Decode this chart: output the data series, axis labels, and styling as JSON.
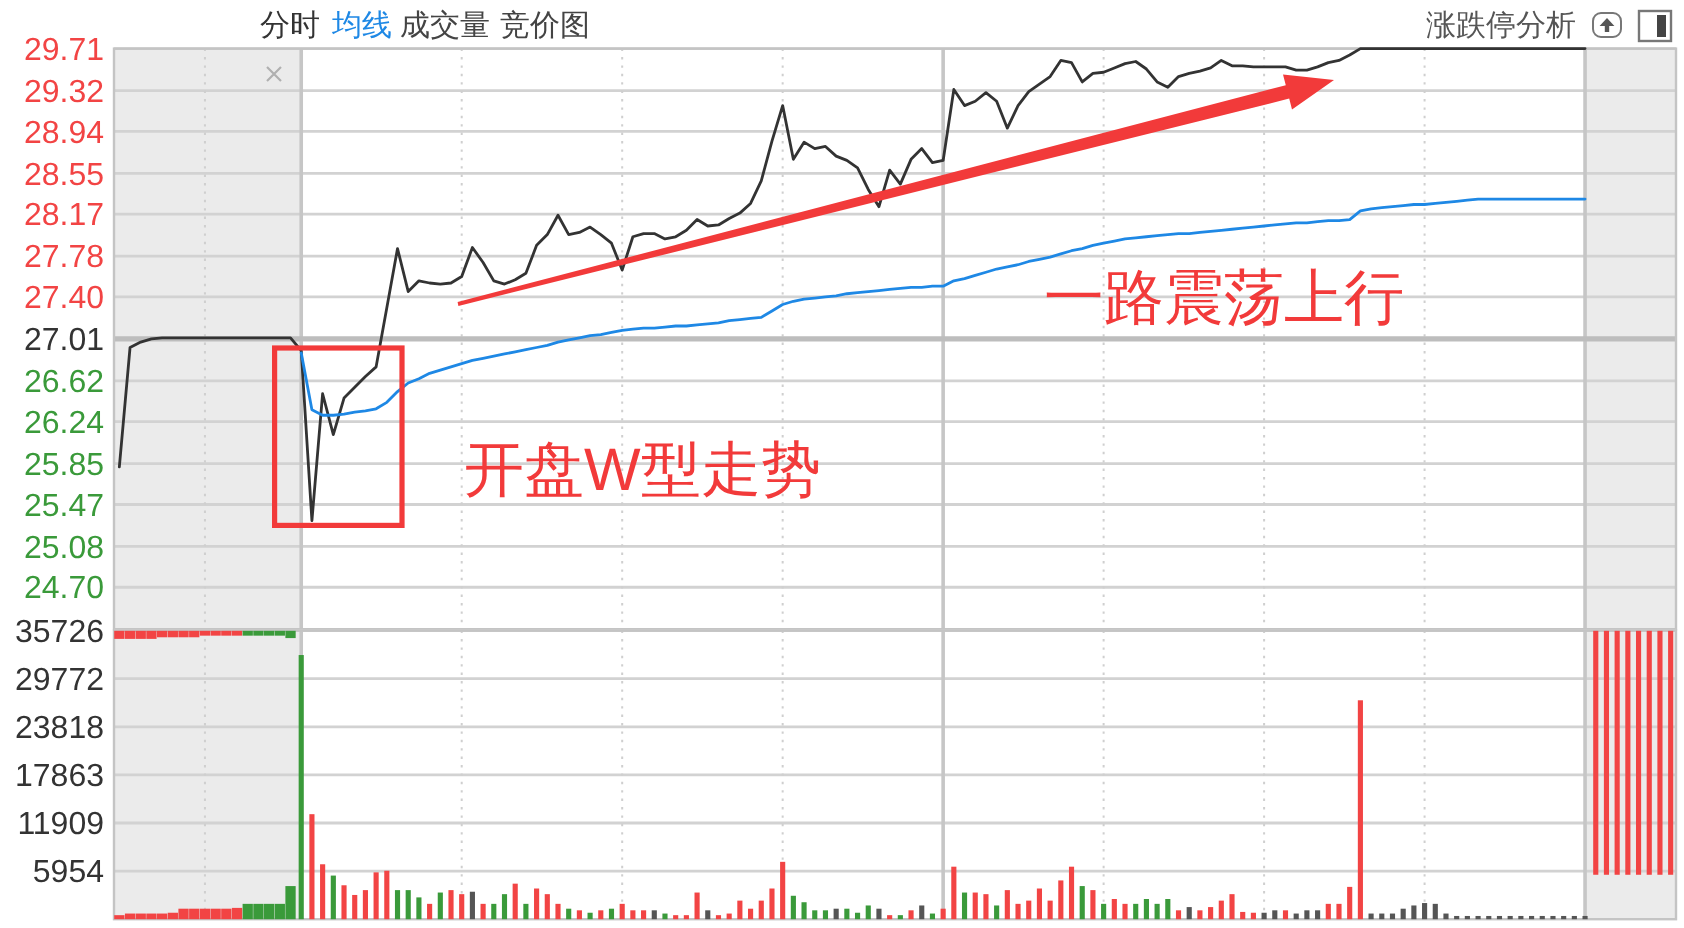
{
  "chart_data": [
    {
      "type": "line",
      "categories": [
        null,
        null,
        null,
        null,
        null,
        null,
        null,
        null,
        null,
        null,
        null,
        null,
        null,
        null,
        null,
        null,
        null,
        null,
        null,
        null,
        null,
        null,
        null,
        null,
        null,
        null,
        null,
        null,
        null,
        null,
        null,
        null,
        null,
        null,
        null,
        null,
        null,
        null,
        null,
        null,
        null,
        null,
        null,
        null,
        null,
        null,
        null,
        null,
        null,
        null,
        null,
        null,
        null,
        null,
        null,
        null,
        null,
        null,
        null,
        null,
        null,
        null,
        null,
        null,
        null,
        null,
        null,
        null,
        null,
        null,
        null,
        null,
        null,
        null,
        null,
        null,
        null,
        null,
        null,
        null,
        null,
        null,
        null,
        null,
        null,
        null,
        null,
        null,
        null,
        null,
        null,
        null,
        null,
        null,
        null,
        null,
        null,
        null,
        null,
        null,
        null,
        null,
        null,
        null,
        null,
        null,
        null,
        null,
        null,
        null,
        null,
        null,
        null,
        null,
        null,
        null,
        null,
        null,
        null,
        null,
        null,
        null,
        null,
        null,
        null,
        null,
        null,
        null,
        null,
        null,
        null,
        null,
        null,
        null,
        null,
        null,
        null,
        null,
        null,
        null,
        null,
        null,
        null,
        null,
        null,
        null
      ],
      "series": [
        {
          "name": "分时",
          "color": "#333333",
          "values": [
            25.82,
            26.93,
            26.98,
            27.01,
            27.02,
            27.02,
            27.02,
            27.02,
            27.02,
            27.02,
            27.02,
            27.02,
            27.02,
            27.02,
            27.02,
            27.02,
            27.02,
            26.9,
            25.32,
            26.5,
            26.12,
            26.46,
            26.56,
            26.66,
            26.75,
            27.3,
            27.85,
            27.45,
            27.55,
            27.53,
            27.52,
            27.53,
            27.59,
            27.86,
            27.72,
            27.55,
            27.52,
            27.56,
            27.62,
            27.88,
            27.98,
            28.16,
            27.98,
            28.0,
            28.05,
            27.98,
            27.9,
            27.65,
            27.96,
            27.99,
            27.99,
            27.94,
            27.96,
            28.02,
            28.12,
            28.06,
            28.07,
            28.13,
            28.18,
            28.27,
            28.48,
            28.85,
            29.18,
            28.68,
            28.84,
            28.78,
            28.8,
            28.71,
            28.67,
            28.6,
            28.4,
            28.24,
            28.58,
            28.45,
            28.68,
            28.78,
            28.65,
            28.67,
            29.33,
            29.18,
            29.22,
            29.3,
            29.22,
            28.97,
            29.18,
            29.31,
            29.38,
            29.45,
            29.6,
            29.58,
            29.4,
            29.48,
            29.49,
            29.53,
            29.57,
            29.59,
            29.52,
            29.4,
            29.35,
            29.45,
            29.48,
            29.5,
            29.53,
            29.6,
            29.55,
            29.55,
            29.54,
            29.54,
            29.54,
            29.54,
            29.51,
            29.51,
            29.54,
            29.58,
            29.6,
            29.65,
            29.71,
            29.71,
            29.71,
            29.71,
            29.71,
            29.71,
            29.71,
            29.71,
            29.71,
            29.71,
            29.71,
            29.71,
            29.71,
            29.71,
            29.71,
            29.71,
            29.71,
            29.71,
            29.71,
            29.71,
            29.71,
            29.71,
            null,
            null,
            null,
            null,
            null,
            null,
            null,
            null
          ]
        },
        {
          "name": "均线",
          "color": "#1e88e5",
          "values": [
            null,
            null,
            null,
            null,
            null,
            null,
            null,
            null,
            null,
            null,
            null,
            null,
            null,
            null,
            null,
            null,
            null,
            26.88,
            26.35,
            26.3,
            26.3,
            26.31,
            26.33,
            26.34,
            26.36,
            26.42,
            26.52,
            26.6,
            26.64,
            26.69,
            26.72,
            26.75,
            26.78,
            26.81,
            26.83,
            26.85,
            26.87,
            26.89,
            26.91,
            26.93,
            26.95,
            26.98,
            27.0,
            27.02,
            27.04,
            27.05,
            27.07,
            27.09,
            27.1,
            27.11,
            27.11,
            27.12,
            27.13,
            27.13,
            27.14,
            27.15,
            27.16,
            27.18,
            27.19,
            27.2,
            27.21,
            27.27,
            27.33,
            27.36,
            27.38,
            27.39,
            27.4,
            27.41,
            27.43,
            27.44,
            27.45,
            27.46,
            27.47,
            27.48,
            27.49,
            27.49,
            27.5,
            27.5,
            27.55,
            27.57,
            27.6,
            27.63,
            27.66,
            27.68,
            27.7,
            27.73,
            27.75,
            27.77,
            27.8,
            27.83,
            27.85,
            27.88,
            27.9,
            27.92,
            27.94,
            27.95,
            27.96,
            27.97,
            27.98,
            27.99,
            27.99,
            28.0,
            28.01,
            28.02,
            28.03,
            28.04,
            28.05,
            28.06,
            28.07,
            28.08,
            28.09,
            28.09,
            28.1,
            28.11,
            28.11,
            28.12,
            28.2,
            28.22,
            28.23,
            28.24,
            28.25,
            28.26,
            28.26,
            28.27,
            28.28,
            28.29,
            28.3,
            28.31,
            28.31,
            28.31,
            28.31,
            28.31,
            28.31,
            28.31,
            28.31,
            28.31,
            28.31,
            28.31,
            null,
            null,
            null,
            null,
            null,
            null,
            null,
            null
          ]
        }
      ],
      "ylim": [
        24.31,
        29.71
      ],
      "yticks": [
        {
          "value": 24.7,
          "label": "24.70"
        },
        25.08,
        25.47,
        25.85,
        26.24,
        26.62,
        27.01,
        {
          "value": 27.4,
          "label": "27.40"
        },
        27.78,
        28.17,
        28.55,
        28.94,
        29.32,
        29.71
      ],
      "grid": true,
      "legend": "top left",
      "tick_labels": "y",
      "ref_lines": [
        {
          "axis": "y",
          "value": 27.01,
          "color": "#bdbdbd"
        }
      ],
      "annotations": [
        "成交量",
        "竞价图",
        "涨跌停分析",
        "开盘W型走势",
        "一路震荡上行"
      ]
    },
    {
      "type": "bar",
      "categories": [
        null,
        null,
        null,
        null,
        null,
        null,
        null,
        null,
        null,
        null,
        null,
        null,
        null,
        null,
        null,
        null,
        null,
        null,
        null,
        null,
        null,
        null,
        null,
        null,
        null,
        null,
        null,
        null,
        null,
        null,
        null,
        null,
        null,
        null,
        null,
        null,
        null,
        null,
        null,
        null,
        null,
        null,
        null,
        null,
        null,
        null,
        null,
        null,
        null,
        null,
        null,
        null,
        null,
        null,
        null,
        null,
        null,
        null,
        null,
        null,
        null,
        null,
        null,
        null,
        null,
        null,
        null,
        null,
        null,
        null,
        null,
        null,
        null,
        null,
        null,
        null,
        null,
        null,
        null,
        null,
        null,
        null,
        null,
        null,
        null,
        null,
        null,
        null,
        null,
        null,
        null,
        null,
        null,
        null,
        null,
        null,
        null,
        null,
        null,
        null,
        null,
        null,
        null,
        null,
        null,
        null,
        null,
        null,
        null,
        null,
        null,
        null,
        null,
        null,
        null,
        null,
        null,
        null,
        null,
        null,
        null,
        null,
        null,
        null,
        null,
        null,
        null,
        null,
        null,
        null,
        null,
        null,
        null,
        null,
        null,
        null,
        null,
        null,
        null,
        null,
        null,
        null,
        null,
        null,
        null,
        null
      ],
      "series": [
        {
          "values": [
            500,
            700,
            700,
            700,
            700,
            800,
            1300,
            1300,
            1300,
            1300,
            1300,
            1400,
            1900,
            1900,
            1900,
            1900,
            4100,
            32700,
            13000,
            6800,
            5400,
            4200,
            3000,
            3600,
            5800,
            6000,
            3600,
            3600,
            2700,
            1900,
            3300,
            3600,
            3100,
            3400,
            1900,
            1900,
            3100,
            4400,
            1900,
            3800,
            3100,
            1900,
            1300,
            1100,
            800,
            1100,
            1300,
            1900,
            1100,
            1100,
            1100,
            700,
            500,
            500,
            3300,
            1100,
            500,
            700,
            2300,
            1300,
            2300,
            3800,
            7100,
            2900,
            2100,
            1100,
            1100,
            1300,
            1300,
            800,
            1700,
            1300,
            500,
            500,
            1100,
            1700,
            700,
            1300,
            6500,
            3300,
            3300,
            3100,
            1700,
            3600,
            1900,
            2300,
            3800,
            2300,
            4800,
            6500,
            4100,
            3600,
            1900,
            2500,
            1900,
            1900,
            2500,
            1900,
            2500,
            1100,
            1500,
            1100,
            1500,
            2300,
            3100,
            900,
            800,
            800,
            1100,
            1100,
            700,
            1100,
            1100,
            1900,
            1900,
            4000,
            27100,
            700,
            700,
            700,
            1300,
            1700,
            2000,
            1900,
            700,
            400,
            400,
            400,
            400,
            400,
            400,
            400,
            400,
            400,
            400,
            400,
            400,
            400,
            null,
            null,
            null,
            null,
            null,
            null,
            null,
            null
          ],
          "colors": [
            "#f24444",
            "#f24444",
            "#f24444",
            "#f24444",
            "#f24444",
            "#f24444",
            "#f24444",
            "#f24444",
            "#f24444",
            "#f24444",
            "#f24444",
            "#f24444",
            "#3a9a3a",
            "#3a9a3a",
            "#3a9a3a",
            "#3a9a3a",
            "#3a9a3a",
            "#3a9a3a",
            "#f24444",
            "#f24444",
            "#3a9a3a",
            "#f24444",
            "#f24444",
            "#f24444",
            "#f24444",
            "#f24444",
            "#3a9a3a",
            "#3a9a3a",
            "#3a9a3a",
            "#f24444",
            "#3a9a3a",
            "#f24444",
            "#f24444",
            "#555555",
            "#f24444",
            "#3a9a3a",
            "#3a9a3a",
            "#f24444",
            "#3a9a3a",
            "#f24444",
            "#f24444",
            "#f24444",
            "#3a9a3a",
            "#f24444",
            "#3a9a3a",
            "#f24444",
            "#3a9a3a",
            "#f24444",
            "#f24444",
            "#f24444",
            "#555555",
            "#3a9a3a",
            "#f24444",
            "#f24444",
            "#f24444",
            "#555555",
            "#f24444",
            "#f24444",
            "#f24444",
            "#f24444",
            "#f24444",
            "#f24444",
            "#f24444",
            "#3a9a3a",
            "#3a9a3a",
            "#3a9a3a",
            "#3a9a3a",
            "#555555",
            "#3a9a3a",
            "#3a9a3a",
            "#3a9a3a",
            "#555555",
            "#f24444",
            "#3a9a3a",
            "#f24444",
            "#555555",
            "#3a9a3a",
            "#f24444",
            "#f24444",
            "#3a9a3a",
            "#f24444",
            "#f24444",
            "#3a9a3a",
            "#f24444",
            "#f24444",
            "#f24444",
            "#f24444",
            "#f24444",
            "#f24444",
            "#f24444",
            "#3a9a3a",
            "#f24444",
            "#3a9a3a",
            "#f24444",
            "#f24444",
            "#3a9a3a",
            "#3a9a3a",
            "#3a9a3a",
            "#3a9a3a",
            "#f24444",
            "#555555",
            "#f24444",
            "#f24444",
            "#f24444",
            "#f24444",
            "#f24444",
            "#f24444",
            "#555555",
            "#555555",
            "#f24444",
            "#555555",
            "#555555",
            "#555555",
            "#f24444",
            "#f24444",
            "#f24444",
            "#f24444",
            "#555555",
            "#555555",
            "#555555",
            "#555555",
            "#555555",
            "#555555",
            "#555555",
            "#555555",
            "#555555",
            "#555555",
            "#555555",
            "#555555",
            "#555555",
            "#555555",
            "#555555",
            "#555555",
            "#555555",
            "#555555",
            "#555555",
            "#555555",
            "#555555",
            null,
            null,
            null,
            null,
            null,
            null,
            null,
            null
          ]
        },
        {
          "values": [
            1000,
            1000,
            1000,
            1000,
            800,
            800,
            800,
            800,
            600,
            600,
            600,
            600,
            600,
            600,
            600,
            600,
            900,
            null,
            null,
            null,
            null,
            null,
            null,
            null,
            null,
            null,
            null,
            null,
            null,
            null,
            null,
            null,
            null,
            null,
            null,
            null,
            null,
            null,
            null,
            null,
            null,
            null,
            null,
            null,
            null,
            null,
            null,
            null,
            null,
            null,
            null,
            null,
            null,
            null,
            null,
            null,
            null,
            null,
            null,
            null,
            null,
            null,
            null,
            null,
            null,
            null,
            null,
            null,
            null,
            null,
            null,
            null,
            null,
            null,
            null,
            null,
            null,
            null,
            null,
            null,
            null,
            null,
            null,
            null,
            null,
            null,
            null,
            null,
            null,
            null,
            null,
            null,
            null,
            null,
            null,
            null,
            null,
            null,
            null,
            null,
            null,
            null,
            null,
            null,
            null,
            null,
            null,
            null,
            null,
            null,
            null,
            null,
            null,
            null,
            null,
            null,
            null,
            null,
            null,
            null,
            null,
            null,
            null,
            null,
            null,
            null,
            null,
            null,
            null,
            null,
            null,
            null,
            null,
            null,
            null,
            null,
            null,
            null,
            30200,
            30200,
            30200,
            30200,
            30200,
            30200,
            30200,
            30200
          ],
          "base": [
            34700,
            34700,
            34700,
            34700,
            34900,
            34900,
            34900,
            34900,
            35100,
            35100,
            35100,
            35100,
            35100,
            35100,
            35100,
            35100,
            34800,
            null,
            null,
            null,
            null,
            null,
            null,
            null,
            null,
            null,
            null,
            null,
            null,
            null,
            null,
            null,
            null,
            null,
            null,
            null,
            null,
            null,
            null,
            null,
            null,
            null,
            null,
            null,
            null,
            null,
            null,
            null,
            null,
            null,
            null,
            null,
            null,
            null,
            null,
            null,
            null,
            null,
            null,
            null,
            null,
            null,
            null,
            null,
            null,
            null,
            null,
            null,
            null,
            null,
            null,
            null,
            null,
            null,
            null,
            null,
            null,
            null,
            null,
            null,
            null,
            null,
            null,
            null,
            null,
            null,
            null,
            null,
            null,
            null,
            null,
            null,
            null,
            null,
            null,
            null,
            null,
            null,
            null,
            null,
            null,
            null,
            null,
            null,
            null,
            null,
            null,
            null,
            null,
            null,
            null,
            null,
            null,
            null,
            null,
            null,
            null,
            null,
            null,
            null,
            null,
            null,
            null,
            null,
            null,
            null,
            null,
            null,
            null,
            null,
            null,
            null,
            null,
            null,
            null,
            null,
            null,
            null,
            5500,
            5500,
            5500,
            5500,
            5500,
            5500,
            5500,
            5500
          ],
          "colors": [
            "#f24444",
            "#f24444",
            "#f24444",
            "#f24444",
            "#f24444",
            "#f24444",
            "#f24444",
            "#f24444",
            "#f24444",
            "#f24444",
            "#f24444",
            "#f24444",
            "#3a9a3a",
            "#3a9a3a",
            "#3a9a3a",
            "#3a9a3a",
            "#3a9a3a",
            null,
            null,
            null,
            null,
            null,
            null,
            null,
            null,
            null,
            null,
            null,
            null,
            null,
            null,
            null,
            null,
            null,
            null,
            null,
            null,
            null,
            null,
            null,
            null,
            null,
            null,
            null,
            null,
            null,
            null,
            null,
            null,
            null,
            null,
            null,
            null,
            null,
            null,
            null,
            null,
            null,
            null,
            null,
            null,
            null,
            null,
            null,
            null,
            null,
            null,
            null,
            null,
            null,
            null,
            null,
            null,
            null,
            null,
            null,
            null,
            null,
            null,
            null,
            null,
            null,
            null,
            null,
            null,
            null,
            null,
            null,
            null,
            null,
            null,
            null,
            null,
            null,
            null,
            null,
            null,
            null,
            null,
            null,
            null,
            null,
            null,
            null,
            null,
            null,
            null,
            null,
            null,
            null,
            null,
            null,
            null,
            null,
            null,
            null,
            null,
            null,
            null,
            null,
            null,
            null,
            null,
            null,
            null,
            null,
            null,
            null,
            null,
            null,
            null,
            null,
            null,
            null,
            null,
            null,
            null,
            null,
            "#f24444",
            "#f24444",
            "#f24444",
            "#f24444",
            "#f24444",
            "#f24444",
            "#f24444",
            "#f24444"
          ]
        }
      ],
      "ylim": [
        0,
        35726
      ],
      "yticks": [
        5954,
        11909,
        17863,
        23818,
        29772,
        35726
      ],
      "grid": true,
      "tick_labels": "y"
    }
  ]
}
